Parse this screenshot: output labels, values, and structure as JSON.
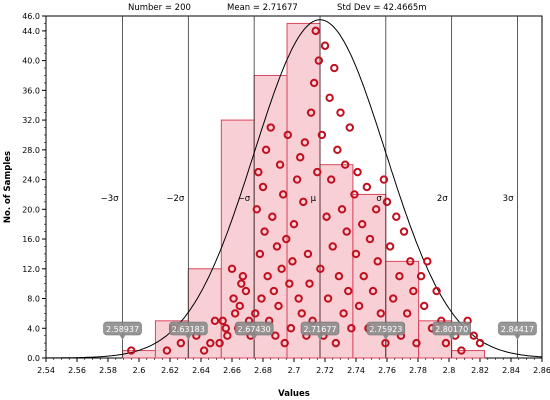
{
  "chart_data": {
    "type": "scatter",
    "header": {
      "number": "Number = 200",
      "mean": "Mean = 2.71677",
      "std": "Std Dev = 42.4665m"
    },
    "xlabel": "Values",
    "ylabel": "No. of Samples",
    "xlim": [
      2.54,
      2.86
    ],
    "ylim": [
      0,
      46
    ],
    "x_ticks": [
      "2.54",
      "2.56",
      "2.58",
      "2.6",
      "2.62",
      "2.64",
      "2.66",
      "2.68",
      "2.7",
      "2.72",
      "2.74",
      "2.76",
      "2.78",
      "2.8",
      "2.82",
      "2.84",
      "2.86"
    ],
    "x_tick_values": [
      2.54,
      2.56,
      2.58,
      2.6,
      2.62,
      2.64,
      2.66,
      2.68,
      2.7,
      2.72,
      2.74,
      2.76,
      2.78,
      2.8,
      2.82,
      2.84,
      2.86
    ],
    "y_ticks": [
      "0.0",
      "4.0",
      "8.0",
      "12.0",
      "16.0",
      "20.0",
      "24.0",
      "28.0",
      "32.0",
      "36.0",
      "40.0",
      "44.0",
      "46.0"
    ],
    "y_tick_values": [
      0,
      4,
      8,
      12,
      16,
      20,
      24,
      28,
      32,
      36,
      40,
      44,
      46
    ],
    "histogram": {
      "bin_edges": [
        2.5894,
        2.6106,
        2.6318,
        2.6531,
        2.6743,
        2.6955,
        2.7168,
        2.738,
        2.7592,
        2.7804,
        2.8017,
        2.8229
      ],
      "counts": [
        1,
        5,
        12,
        32,
        38,
        45,
        26,
        22,
        13,
        5,
        1
      ],
      "fill": "#f9cfd6",
      "stroke": "#d9475f"
    },
    "sigma_lines": [
      {
        "value": 2.58937,
        "label": "−3σ",
        "marker": "2.58937"
      },
      {
        "value": 2.63183,
        "label": "−2σ",
        "marker": "2.63183"
      },
      {
        "value": 2.6743,
        "label": "−σ",
        "marker": "2.67430"
      },
      {
        "value": 2.71677,
        "label": "μ",
        "marker": "2.71677"
      },
      {
        "value": 2.75923,
        "label": "σ",
        "marker": "2.75923"
      },
      {
        "value": 2.8017,
        "label": "2σ",
        "marker": "2.80170"
      },
      {
        "value": 2.84417,
        "label": "3σ",
        "marker": "2.84417"
      }
    ],
    "normal_curve": {
      "mean": 2.71677,
      "std": 0.0424665,
      "peak": 45.5
    },
    "points": [
      [
        2.595,
        1
      ],
      [
        2.618,
        1
      ],
      [
        2.622,
        4
      ],
      [
        2.627,
        2
      ],
      [
        2.637,
        3
      ],
      [
        2.642,
        1
      ],
      [
        2.646,
        2
      ],
      [
        2.649,
        5
      ],
      [
        2.652,
        2
      ],
      [
        2.654,
        5
      ],
      [
        2.656,
        4
      ],
      [
        2.657,
        3
      ],
      [
        2.66,
        12
      ],
      [
        2.661,
        8
      ],
      [
        2.662,
        6
      ],
      [
        2.664,
        4
      ],
      [
        2.665,
        7
      ],
      [
        2.666,
        10
      ],
      [
        2.667,
        11
      ],
      [
        2.669,
        9
      ],
      [
        2.671,
        5
      ],
      [
        2.672,
        3
      ],
      [
        2.675,
        6
      ],
      [
        2.676,
        20
      ],
      [
        2.677,
        25
      ],
      [
        2.678,
        14
      ],
      [
        2.679,
        8
      ],
      [
        2.68,
        23
      ],
      [
        2.681,
        17
      ],
      [
        2.682,
        28
      ],
      [
        2.683,
        11
      ],
      [
        2.684,
        5
      ],
      [
        2.685,
        31
      ],
      [
        2.686,
        19
      ],
      [
        2.687,
        9
      ],
      [
        2.688,
        3
      ],
      [
        2.689,
        15
      ],
      [
        2.69,
        7
      ],
      [
        2.691,
        26
      ],
      [
        2.692,
        12
      ],
      [
        2.693,
        22
      ],
      [
        2.694,
        2
      ],
      [
        2.695,
        16
      ],
      [
        2.696,
        30
      ],
      [
        2.697,
        10
      ],
      [
        2.698,
        4
      ],
      [
        2.699,
        13
      ],
      [
        2.7,
        18
      ],
      [
        2.702,
        24
      ],
      [
        2.703,
        8
      ],
      [
        2.704,
        27
      ],
      [
        2.705,
        6
      ],
      [
        2.706,
        21
      ],
      [
        2.707,
        29
      ],
      [
        2.708,
        3
      ],
      [
        2.709,
        14
      ],
      [
        2.71,
        10
      ],
      [
        2.711,
        33
      ],
      [
        2.712,
        5
      ],
      [
        2.713,
        37
      ],
      [
        2.714,
        44
      ],
      [
        2.715,
        25
      ],
      [
        2.716,
        40
      ],
      [
        2.717,
        12
      ],
      [
        2.718,
        30
      ],
      [
        2.719,
        3
      ],
      [
        2.72,
        42
      ],
      [
        2.721,
        19
      ],
      [
        2.722,
        8
      ],
      [
        2.723,
        35
      ],
      [
        2.724,
        24
      ],
      [
        2.725,
        15
      ],
      [
        2.726,
        39
      ],
      [
        2.727,
        2
      ],
      [
        2.728,
        28
      ],
      [
        2.729,
        11
      ],
      [
        2.73,
        33
      ],
      [
        2.731,
        20
      ],
      [
        2.732,
        6
      ],
      [
        2.733,
        26
      ],
      [
        2.734,
        17
      ],
      [
        2.735,
        9
      ],
      [
        2.736,
        31
      ],
      [
        2.737,
        4
      ],
      [
        2.739,
        22
      ],
      [
        2.74,
        14
      ],
      [
        2.741,
        25
      ],
      [
        2.742,
        7
      ],
      [
        2.744,
        18
      ],
      [
        2.745,
        11
      ],
      [
        2.747,
        23
      ],
      [
        2.748,
        4
      ],
      [
        2.749,
        16
      ],
      [
        2.751,
        9
      ],
      [
        2.753,
        20
      ],
      [
        2.754,
        13
      ],
      [
        2.756,
        6
      ],
      [
        2.758,
        24
      ],
      [
        2.759,
        2
      ],
      [
        2.76,
        21
      ],
      [
        2.762,
        15
      ],
      [
        2.764,
        8
      ],
      [
        2.766,
        19
      ],
      [
        2.768,
        11
      ],
      [
        2.769,
        3
      ],
      [
        2.771,
        17
      ],
      [
        2.773,
        6
      ],
      [
        2.775,
        13
      ],
      [
        2.777,
        9
      ],
      [
        2.779,
        2
      ],
      [
        2.782,
        11
      ],
      [
        2.784,
        7
      ],
      [
        2.786,
        13
      ],
      [
        2.789,
        4
      ],
      [
        2.792,
        9
      ],
      [
        2.795,
        5
      ],
      [
        2.798,
        2
      ],
      [
        2.804,
        3
      ],
      [
        2.808,
        1
      ],
      [
        2.812,
        5
      ],
      [
        2.816,
        3
      ],
      [
        2.82,
        2
      ]
    ],
    "point_color": "#c0101e"
  }
}
